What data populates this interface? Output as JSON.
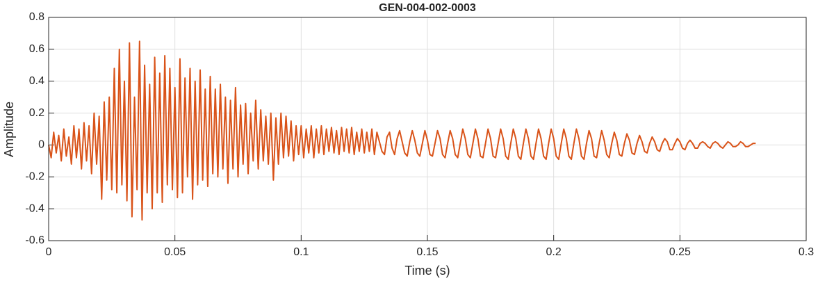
{
  "chart_data": {
    "type": "line",
    "title": "GEN-004-002-0003",
    "x_label": "Time (s)",
    "y_label": "Amplitude",
    "color": "#d95319",
    "grid": true,
    "xlim": [
      0,
      0.3
    ],
    "ylim": [
      -0.6,
      0.8
    ],
    "xticks": [
      0,
      0.05,
      0.1,
      0.15,
      0.2,
      0.25,
      0.3
    ],
    "yticks": [
      -0.6,
      -0.4,
      -0.2,
      0,
      0.2,
      0.4,
      0.6,
      0.8
    ],
    "x": [
      0,
      0.001,
      0.002,
      0.003,
      0.004,
      0.005,
      0.006,
      0.007,
      0.008,
      0.009,
      0.01,
      0.011,
      0.012,
      0.013,
      0.014,
      0.015,
      0.016,
      0.017,
      0.018,
      0.019,
      0.02,
      0.021,
      0.022,
      0.023,
      0.024,
      0.025,
      0.026,
      0.027,
      0.028,
      0.029,
      0.03,
      0.031,
      0.032,
      0.033,
      0.034,
      0.035,
      0.036,
      0.037,
      0.038,
      0.039,
      0.04,
      0.041,
      0.042,
      0.043,
      0.044,
      0.045,
      0.046,
      0.047,
      0.048,
      0.049,
      0.05,
      0.051,
      0.052,
      0.053,
      0.054,
      0.055,
      0.056,
      0.057,
      0.058,
      0.059,
      0.06,
      0.061,
      0.062,
      0.063,
      0.064,
      0.065,
      0.066,
      0.067,
      0.068,
      0.069,
      0.07,
      0.071,
      0.072,
      0.073,
      0.074,
      0.075,
      0.076,
      0.077,
      0.078,
      0.079,
      0.08,
      0.081,
      0.082,
      0.083,
      0.084,
      0.085,
      0.086,
      0.087,
      0.088,
      0.089,
      0.09,
      0.091,
      0.092,
      0.093,
      0.094,
      0.095,
      0.096,
      0.097,
      0.098,
      0.099,
      0.1,
      0.101,
      0.102,
      0.103,
      0.104,
      0.105,
      0.106,
      0.107,
      0.108,
      0.109,
      0.11,
      0.111,
      0.112,
      0.113,
      0.114,
      0.115,
      0.116,
      0.117,
      0.118,
      0.119,
      0.12,
      0.121,
      0.122,
      0.123,
      0.124,
      0.125,
      0.126,
      0.127,
      0.128,
      0.129,
      0.13,
      0.131,
      0.132,
      0.133,
      0.134,
      0.135,
      0.136,
      0.137,
      0.138,
      0.139,
      0.14,
      0.141,
      0.142,
      0.143,
      0.144,
      0.145,
      0.146,
      0.147,
      0.148,
      0.149,
      0.15,
      0.151,
      0.152,
      0.153,
      0.154,
      0.155,
      0.156,
      0.157,
      0.158,
      0.159,
      0.16,
      0.161,
      0.162,
      0.163,
      0.164,
      0.165,
      0.166,
      0.167,
      0.168,
      0.169,
      0.17,
      0.171,
      0.172,
      0.173,
      0.174,
      0.175,
      0.176,
      0.177,
      0.178,
      0.179,
      0.18,
      0.181,
      0.182,
      0.183,
      0.184,
      0.185,
      0.186,
      0.187,
      0.188,
      0.189,
      0.19,
      0.191,
      0.192,
      0.193,
      0.194,
      0.195,
      0.196,
      0.197,
      0.198,
      0.199,
      0.2,
      0.201,
      0.202,
      0.203,
      0.204,
      0.205,
      0.206,
      0.207,
      0.208,
      0.209,
      0.21,
      0.211,
      0.212,
      0.213,
      0.214,
      0.215,
      0.216,
      0.217,
      0.218,
      0.219,
      0.22,
      0.221,
      0.222,
      0.223,
      0.224,
      0.225,
      0.226,
      0.227,
      0.228,
      0.229,
      0.23,
      0.231,
      0.232,
      0.233,
      0.234,
      0.235,
      0.236,
      0.237,
      0.238,
      0.239,
      0.24,
      0.241,
      0.242,
      0.243,
      0.244,
      0.245,
      0.246,
      0.247,
      0.248,
      0.249,
      0.25,
      0.251,
      0.252,
      0.253,
      0.254,
      0.255,
      0.256,
      0.257,
      0.258,
      0.259,
      0.26,
      0.261,
      0.262,
      0.263,
      0.264,
      0.265,
      0.266,
      0.267,
      0.268,
      0.269,
      0.27,
      0.271,
      0.272,
      0.273,
      0.274,
      0.275,
      0.276,
      0.277,
      0.278,
      0.279,
      0.28
    ],
    "values": [
      0,
      -0.08,
      0.08,
      -0.05,
      0.06,
      -0.1,
      0.1,
      -0.07,
      0.05,
      -0.12,
      0.12,
      -0.08,
      0.1,
      -0.15,
      0.14,
      -0.1,
      0.12,
      -0.18,
      0.2,
      -0.12,
      0.18,
      -0.34,
      0.27,
      -0.22,
      0.3,
      -0.28,
      0.48,
      -0.3,
      0.6,
      -0.25,
      0.4,
      -0.35,
      0.64,
      -0.45,
      0.3,
      -0.28,
      0.65,
      -0.47,
      0.5,
      -0.3,
      0.38,
      -0.4,
      0.55,
      -0.3,
      0.45,
      -0.36,
      0.56,
      -0.25,
      0.48,
      -0.28,
      0.36,
      -0.33,
      0.54,
      -0.3,
      0.42,
      -0.2,
      0.48,
      -0.34,
      0.4,
      -0.25,
      0.47,
      -0.22,
      0.35,
      -0.26,
      0.43,
      -0.18,
      0.35,
      -0.2,
      0.38,
      -0.15,
      0.3,
      -0.24,
      0.28,
      -0.15,
      0.36,
      -0.2,
      0.25,
      -0.12,
      0.26,
      -0.18,
      0.2,
      -0.1,
      0.28,
      -0.15,
      0.22,
      -0.1,
      0.18,
      -0.12,
      0.2,
      -0.22,
      0.17,
      -0.12,
      0.2,
      -0.08,
      0.18,
      -0.07,
      0.15,
      -0.1,
      0.12,
      -0.06,
      0.12,
      -0.08,
      0.1,
      -0.05,
      0.12,
      -0.08,
      0.1,
      -0.05,
      0.12,
      -0.06,
      0.1,
      -0.04,
      0.11,
      -0.05,
      0.09,
      -0.06,
      0.11,
      -0.04,
      0.1,
      -0.05,
      0.11,
      -0.06,
      0.08,
      -0.04,
      0.1,
      -0.05,
      0.08,
      -0.04,
      0.1,
      -0.06,
      0.08,
      0.02,
      -0.04,
      -0.06,
      0.05,
      0.08,
      -0.02,
      -0.06,
      0.04,
      0.09,
      0.02,
      -0.05,
      -0.07,
      0.02,
      0.09,
      0.03,
      -0.05,
      -0.07,
      0.01,
      0.09,
      0.03,
      -0.06,
      -0.07,
      0.01,
      0.09,
      0.04,
      -0.06,
      -0.08,
      0.01,
      0.09,
      0.04,
      -0.06,
      -0.08,
      0.01,
      0.1,
      0.04,
      -0.06,
      -0.08,
      0.01,
      0.1,
      0.04,
      -0.07,
      -0.08,
      0.01,
      0.1,
      0.04,
      -0.07,
      -0.08,
      0.01,
      0.1,
      0.04,
      -0.07,
      -0.09,
      0.01,
      0.1,
      0.04,
      -0.07,
      -0.09,
      0.01,
      0.1,
      0.04,
      -0.07,
      -0.09,
      0.01,
      0.1,
      0.04,
      -0.07,
      -0.09,
      0.01,
      0.1,
      0.04,
      -0.07,
      -0.09,
      0.01,
      0.1,
      0.04,
      -0.07,
      -0.09,
      0.01,
      0.1,
      0.04,
      -0.07,
      -0.09,
      0.01,
      0.09,
      0.04,
      -0.07,
      -0.08,
      0.01,
      0.09,
      0.03,
      -0.06,
      -0.08,
      0.01,
      0.08,
      0.03,
      -0.06,
      -0.07,
      0.01,
      0.07,
      0.03,
      -0.05,
      -0.06,
      0.01,
      0.06,
      0.02,
      -0.04,
      -0.05,
      0.01,
      0.05,
      0.02,
      -0.03,
      -0.04,
      0.01,
      0.04,
      0.02,
      -0.03,
      -0.03,
      0.01,
      0.04,
      0.02,
      -0.02,
      -0.03,
      0.01,
      0.03,
      0.01,
      -0.02,
      -0.02,
      0.01,
      0.02,
      0.01,
      -0.01,
      -0.02,
      0.01,
      0.02,
      0.01,
      -0.01,
      -0.02,
      0,
      0.02,
      0.01,
      -0.01,
      -0.01,
      0,
      0.02,
      0.01,
      -0.01,
      -0.01,
      0,
      0.01,
      0.01
    ]
  }
}
